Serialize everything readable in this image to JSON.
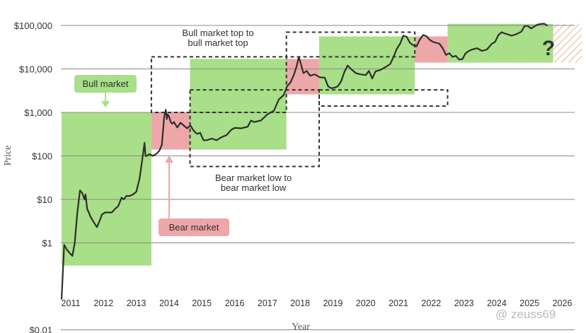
{
  "chart_data": {
    "type": "line",
    "y_scale": "log",
    "ylim": [
      0.01,
      200000
    ],
    "xlim": [
      2010.7,
      2026.9
    ],
    "ylabel": "Price",
    "xlabel": "Year",
    "y_ticks": [
      {
        "value": 100000,
        "label": "$100,000"
      },
      {
        "value": 10000,
        "label": "$10,000"
      },
      {
        "value": 1000,
        "label": "$1,000"
      },
      {
        "value": 100,
        "label": "$100"
      },
      {
        "value": 10,
        "label": "$10"
      },
      {
        "value": 1,
        "label": "$1"
      },
      {
        "value": 0.01,
        "label": "$0.01"
      }
    ],
    "x_ticks": [
      {
        "value": 2011,
        "label": "2011"
      },
      {
        "value": 2012,
        "label": "2012"
      },
      {
        "value": 2013,
        "label": "2013"
      },
      {
        "value": 2014,
        "label": "2014"
      },
      {
        "value": 2015,
        "label": "2015"
      },
      {
        "value": 2016,
        "label": "2016"
      },
      {
        "value": 2017,
        "label": "2017"
      },
      {
        "value": 2018,
        "label": "2018"
      },
      {
        "value": 2019,
        "label": "2019"
      },
      {
        "value": 2020,
        "label": "2020"
      },
      {
        "value": 2021,
        "label": "2021"
      },
      {
        "value": 2022,
        "label": "2022"
      },
      {
        "value": 2023,
        "label": "2023"
      },
      {
        "value": 2024,
        "label": "2024"
      },
      {
        "value": 2025,
        "label": "2025"
      },
      {
        "value": 2026,
        "label": "2026"
      }
    ],
    "grid": "horizontal",
    "colors": {
      "line": "#2e2e2e",
      "bull": "#a9df88",
      "bear": "#eea7a9",
      "grid": "#8a8a8a",
      "dashed": "#333333",
      "hatch": "#e8b48a"
    },
    "series": [
      {
        "x": [
          2010.72,
          2010.8,
          2010.88,
          2010.95,
          2011.05,
          2011.12,
          2011.2,
          2011.28,
          2011.35,
          2011.42,
          2011.45,
          2011.5,
          2011.55,
          2011.6,
          2011.7,
          2011.8,
          2011.9,
          2011.95,
          2012.05,
          2012.15,
          2012.25,
          2012.35,
          2012.45,
          2012.55,
          2012.62,
          2012.7,
          2012.8,
          2012.9,
          2013.0,
          2013.1,
          2013.18,
          2013.25,
          2013.28,
          2013.32,
          2013.4,
          2013.5,
          2013.6,
          2013.7,
          2013.78,
          2013.85,
          2013.9,
          2013.93,
          2013.96,
          2014.0,
          2014.05,
          2014.1,
          2014.15,
          2014.25,
          2014.35,
          2014.45,
          2014.55,
          2014.65,
          2014.75,
          2014.85,
          2014.95,
          2015.05,
          2015.15,
          2015.3,
          2015.45,
          2015.6,
          2015.75,
          2015.9,
          2016.0,
          2016.2,
          2016.4,
          2016.5,
          2016.6,
          2016.8,
          2017.0,
          2017.2,
          2017.35,
          2017.5,
          2017.6,
          2017.7,
          2017.8,
          2017.9,
          2017.96,
          2018.0,
          2018.05,
          2018.1,
          2018.2,
          2018.3,
          2018.45,
          2018.6,
          2018.75,
          2018.85,
          2018.95,
          2019.05,
          2019.15,
          2019.25,
          2019.35,
          2019.45,
          2019.55,
          2019.7,
          2019.85,
          2020.0,
          2020.1,
          2020.2,
          2020.3,
          2020.45,
          2020.6,
          2020.75,
          2020.85,
          2020.95,
          2021.05,
          2021.15,
          2021.25,
          2021.35,
          2021.45,
          2021.55,
          2021.65,
          2021.75,
          2021.85,
          2021.95,
          2022.05,
          2022.15,
          2022.25,
          2022.35,
          2022.45,
          2022.55,
          2022.65,
          2022.75,
          2022.85,
          2022.95,
          2023.05,
          2023.15,
          2023.25,
          2023.4,
          2023.55,
          2023.7,
          2023.85,
          2023.95,
          2024.05,
          2024.15,
          2024.25,
          2024.35,
          2024.45,
          2024.6,
          2024.75,
          2024.85,
          2024.95,
          2025.05,
          2025.15,
          2025.25,
          2025.35,
          2025.45,
          2025.55
        ],
        "y": [
          0.05,
          0.9,
          0.7,
          0.6,
          0.5,
          1.0,
          5,
          16,
          14,
          10,
          13,
          6,
          5,
          4,
          3,
          2.3,
          3.5,
          4.5,
          5,
          5,
          5,
          6,
          7,
          11,
          10,
          12,
          12,
          13,
          15,
          30,
          80,
          200,
          100,
          100,
          110,
          100,
          110,
          130,
          180,
          800,
          1150,
          700,
          900,
          800,
          600,
          550,
          600,
          450,
          580,
          500,
          430,
          500,
          380,
          320,
          340,
          230,
          230,
          250,
          230,
          270,
          300,
          400,
          440,
          430,
          470,
          650,
          600,
          650,
          900,
          1100,
          2000,
          2500,
          4000,
          4800,
          7000,
          12000,
          19000,
          15000,
          11000,
          8000,
          9000,
          7000,
          7500,
          6400,
          6300,
          4000,
          3600,
          3700,
          4000,
          5200,
          8500,
          12000,
          10000,
          8000,
          7500,
          7200,
          9000,
          6000,
          8800,
          9500,
          11000,
          13000,
          19000,
          29000,
          38000,
          58000,
          55000,
          40000,
          35000,
          33000,
          47000,
          60000,
          57000,
          47000,
          42000,
          40000,
          38000,
          30000,
          21000,
          23000,
          19000,
          20000,
          16500,
          16800,
          23000,
          26000,
          28000,
          30000,
          26000,
          28000,
          38000,
          42000,
          60000,
          70000,
          65000,
          62000,
          58000,
          63000,
          72000,
          97000,
          97000,
          85000,
          95000,
          105000,
          108000,
          110000,
          98000
        ],
        "name": ""
      }
    ],
    "shaded_regions": [
      {
        "kind": "bull",
        "x0": 2010.72,
        "x1": 2013.46,
        "y0": 0.3,
        "y1": 1000
      },
      {
        "kind": "bear",
        "x0": 2013.46,
        "x1": 2014.64,
        "y0": 140,
        "y1": 1000
      },
      {
        "kind": "bull",
        "x0": 2014.64,
        "x1": 2017.58,
        "y0": 140,
        "y1": 17000
      },
      {
        "kind": "bear",
        "x0": 2017.58,
        "x1": 2018.58,
        "y0": 2600,
        "y1": 17000
      },
      {
        "kind": "bull",
        "x0": 2018.58,
        "x1": 2021.5,
        "y0": 2600,
        "y1": 56000
      },
      {
        "kind": "bear",
        "x0": 2021.5,
        "x1": 2022.5,
        "y0": 14000,
        "y1": 56000
      },
      {
        "kind": "bull",
        "x0": 2022.5,
        "x1": 2025.72,
        "y0": 14000,
        "y1": 109000
      },
      {
        "kind": "projection",
        "x0": 2025.72,
        "x1": 2026.6,
        "y0": 14000,
        "y1": 109000
      }
    ],
    "dashed_boxes": [
      {
        "x0": 2013.46,
        "x1": 2017.58,
        "y0": 1000,
        "y1": 19000
      },
      {
        "x0": 2017.58,
        "x1": 2021.5,
        "y0": 19000,
        "y1": 70000
      },
      {
        "x0": 2014.64,
        "x1": 2018.58,
        "y0": 57,
        "y1": 3300
      },
      {
        "x0": 2018.58,
        "x1": 2022.5,
        "y0": 1400,
        "y1": 3300
      }
    ],
    "annotations": {
      "bull_tag": "Bull market",
      "bear_tag": "Bear market",
      "top_line1": "Bull market top to",
      "top_line2": "bull market top",
      "low_line1": "Bear market low to",
      "low_line2": "bear market low",
      "question": "?"
    }
  },
  "watermark": {
    "text": "@ zeuss69"
  }
}
